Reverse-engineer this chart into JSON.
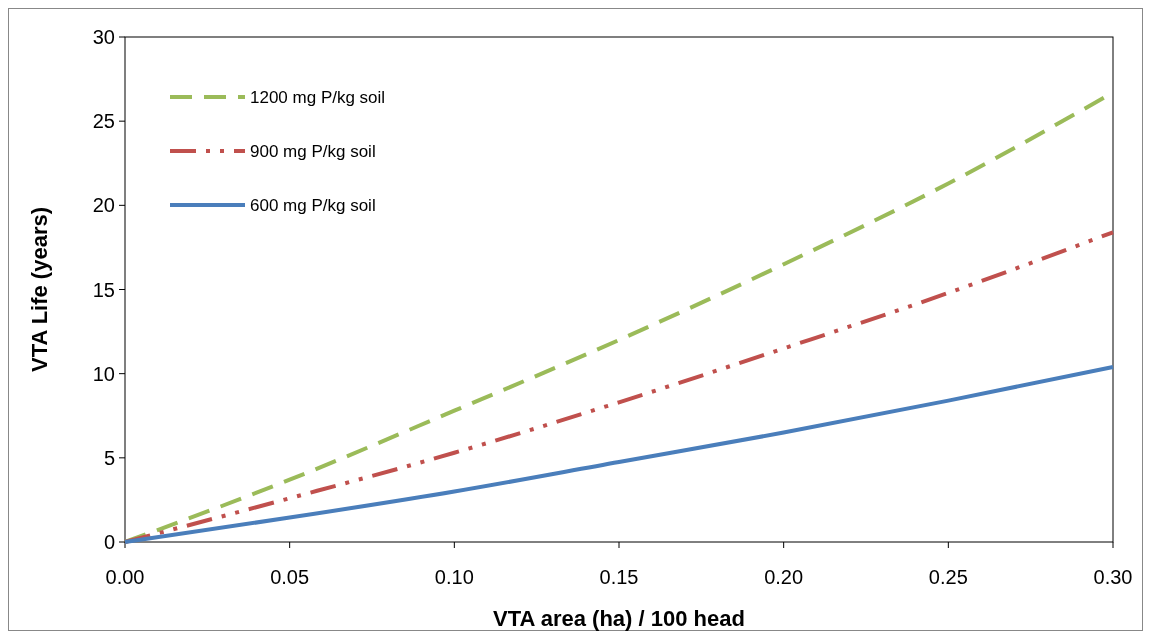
{
  "chart_data": {
    "type": "line",
    "xlabel": "VTA area (ha) / 100 head",
    "ylabel": "VTA Life (years)",
    "x": [
      0,
      0.05,
      0.1,
      0.15,
      0.2,
      0.25,
      0.3
    ],
    "series": [
      {
        "name": "1200 mg P/kg soil",
        "color": "#9bbb59",
        "line_style": "dashed",
        "values": [
          0,
          3.7,
          7.8,
          12.0,
          16.5,
          21.3,
          26.7
        ]
      },
      {
        "name": "900 mg P/kg soil",
        "color": "#c0504d",
        "line_style": "dashdotdot",
        "values": [
          0,
          2.6,
          5.3,
          8.3,
          11.5,
          14.8,
          18.4
        ]
      },
      {
        "name": "600 mg P/kg soil",
        "color": "#4a7ebb",
        "line_style": "solid",
        "values": [
          0,
          1.45,
          3.0,
          4.75,
          6.5,
          8.4,
          10.4
        ]
      }
    ],
    "xlim": [
      0,
      0.3
    ],
    "xticks": [
      {
        "value": 0,
        "label": "0.00"
      },
      {
        "value": 0.05,
        "label": "0.05"
      },
      {
        "value": 0.1,
        "label": "0.10"
      },
      {
        "value": 0.15,
        "label": "0.15"
      },
      {
        "value": 0.2,
        "label": "0.20"
      },
      {
        "value": 0.25,
        "label": "0.25"
      },
      {
        "value": 0.3,
        "label": "0.30"
      }
    ],
    "ylim": [
      0,
      30
    ],
    "yticks": [
      0,
      5,
      10,
      15,
      20,
      25,
      30
    ],
    "legend": "top left",
    "marker": "none"
  }
}
